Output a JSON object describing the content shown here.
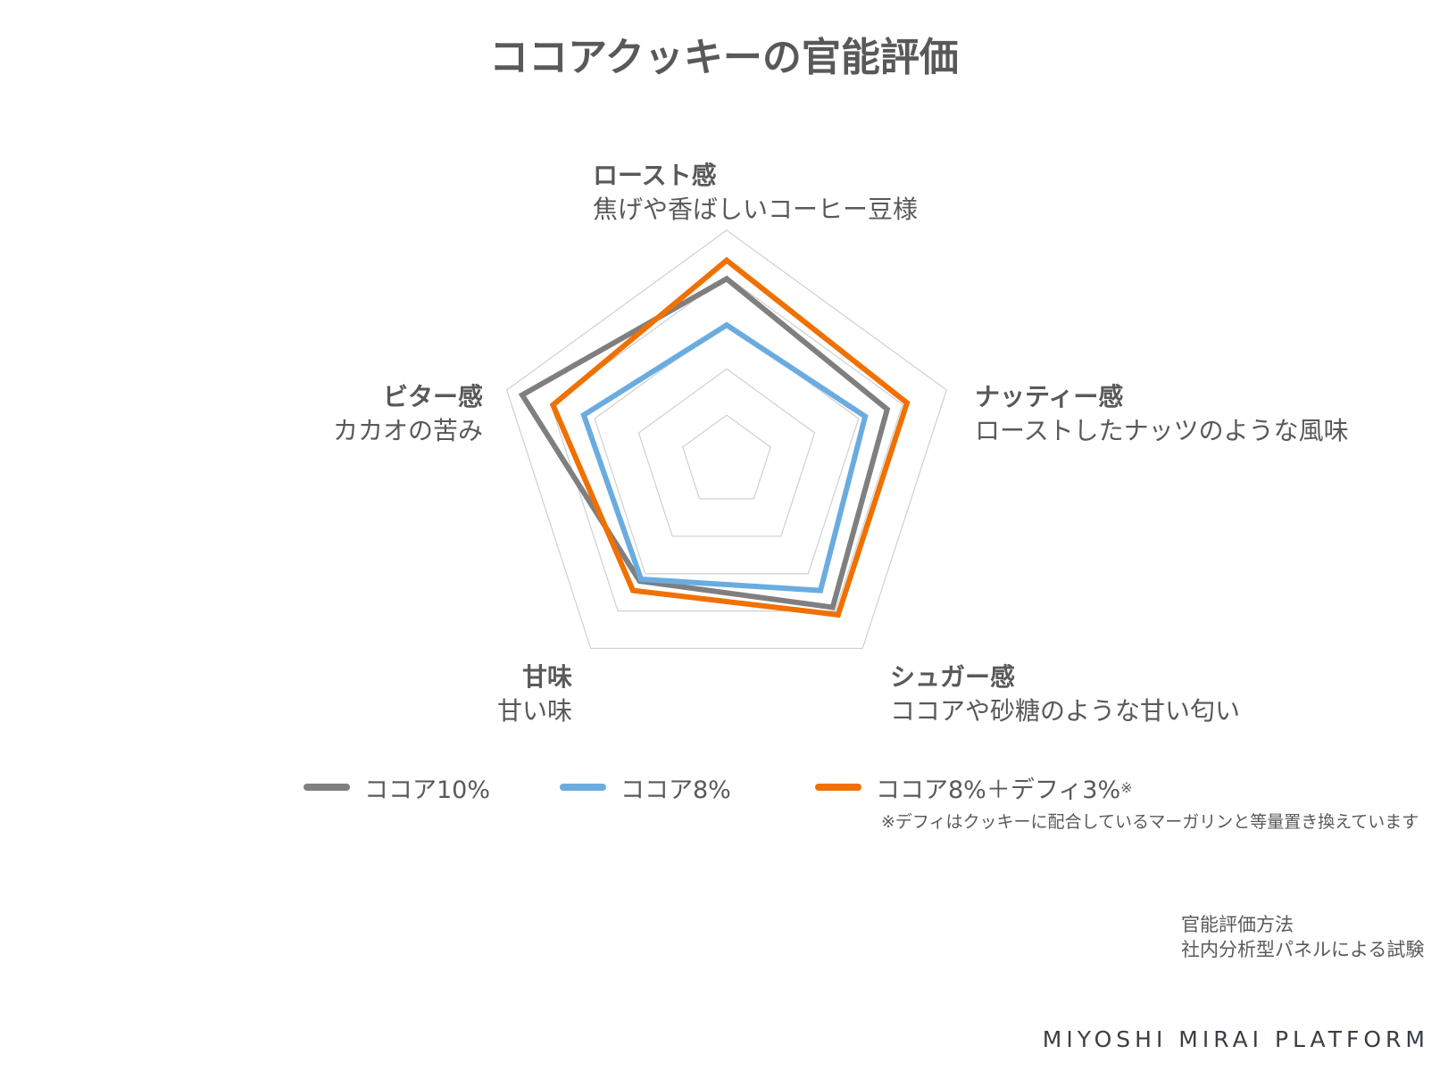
{
  "title": "ココアクッキーの官能評価",
  "axes": [
    {
      "name": "ロースト感",
      "desc": "焦げや香ばしいコーヒー豆様"
    },
    {
      "name": "ナッティー感",
      "desc": "ローストしたナッツのような風味"
    },
    {
      "name": "シュガー感",
      "desc": "ココアや砂糖のような甘い匂い"
    },
    {
      "name": "甘味",
      "desc": "甘い味"
    },
    {
      "name": "ビター感",
      "desc": "カカオの苦み"
    }
  ],
  "legend": [
    {
      "label": "ココア10%",
      "color": "#7f7f7f"
    },
    {
      "label": "ココア8%",
      "color": "#6aace0"
    },
    {
      "label": "ココア8%＋デフィ3%",
      "mark": "※",
      "color": "#f07000"
    }
  ],
  "note": "※デフィはクッキーに配合しているマーガリンと等量置き換えています",
  "method": {
    "line1": "官能評価方法",
    "line2": "社内分析型パネルによる試験"
  },
  "brand": "MIYOSHI MIRAI PLATFORM",
  "chart_data": {
    "type": "radar",
    "categories": [
      "ロースト感",
      "ナッティー感",
      "シュガー感",
      "甘味",
      "ビター感"
    ],
    "rlim": [
      0,
      5
    ],
    "grid": true,
    "series": [
      {
        "name": "ココア10%",
        "values": [
          3.95,
          3.65,
          3.9,
          3.2,
          4.65
        ],
        "color": "#7f7f7f"
      },
      {
        "name": "ココア8%",
        "values": [
          2.95,
          3.15,
          3.45,
          3.15,
          3.25
        ],
        "color": "#6aace0"
      },
      {
        "name": "ココア8%＋デフィ3%",
        "values": [
          4.35,
          4.1,
          4.1,
          3.45,
          3.95
        ],
        "color": "#f07000"
      }
    ]
  }
}
